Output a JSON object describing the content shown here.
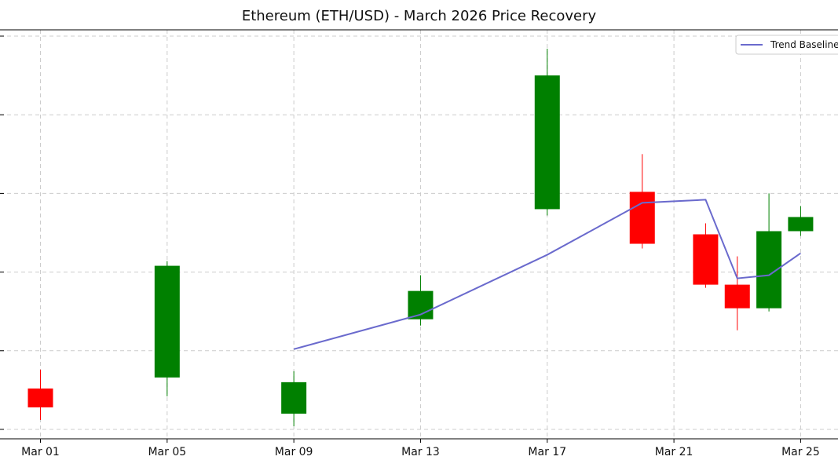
{
  "chart_data": {
    "type": "candlestick",
    "title": "Ethereum (ETH/USD) - March 2026 Price Recovery",
    "xlabel": "",
    "ylabel": "",
    "grid": true,
    "legend_position": "top-right",
    "x_ticks": [
      "Mar 01",
      "Mar 05",
      "Mar 09",
      "Mar 13",
      "Mar 17",
      "Mar 21",
      "Mar 25"
    ],
    "colors": {
      "up": "#008000",
      "down": "#ff0000",
      "trend": "#6a6acd",
      "grid": "#cccccc"
    },
    "candles": [
      {
        "date": "Mar 01",
        "open": 1.3,
        "high": 1.9,
        "low": 0.3,
        "close": 0.7
      },
      {
        "date": "Mar 05",
        "open": 1.65,
        "high": 5.35,
        "low": 1.05,
        "close": 5.2
      },
      {
        "date": "Mar 09",
        "open": 0.5,
        "high": 1.85,
        "low": 0.1,
        "close": 1.5
      },
      {
        "date": "Mar 13",
        "open": 3.5,
        "high": 4.9,
        "low": 3.3,
        "close": 4.4
      },
      {
        "date": "Mar 17",
        "open": 7.0,
        "high": 12.1,
        "low": 6.8,
        "close": 11.25
      },
      {
        "date": "Mar 20",
        "open": 7.55,
        "high": 8.75,
        "low": 5.75,
        "close": 5.9
      },
      {
        "date": "Mar 22",
        "open": 6.2,
        "high": 6.55,
        "low": 4.5,
        "close": 4.6
      },
      {
        "date": "Mar 23",
        "open": 4.6,
        "high": 5.5,
        "low": 3.15,
        "close": 3.85
      },
      {
        "date": "Mar 24",
        "open": 3.85,
        "high": 7.5,
        "low": 3.75,
        "close": 6.3
      },
      {
        "date": "Mar 25",
        "open": 6.3,
        "high": 7.1,
        "low": 6.15,
        "close": 6.75
      }
    ],
    "series": [
      {
        "name": "Trend Baseline",
        "x": [
          "Mar 09",
          "Mar 13",
          "Mar 17",
          "Mar 20",
          "Mar 22",
          "Mar 23",
          "Mar 24",
          "Mar 25"
        ],
        "values": [
          2.55,
          3.65,
          5.55,
          7.2,
          7.3,
          4.8,
          4.9,
          5.6
        ]
      }
    ],
    "ylim": [
      -0.3,
      12.7
    ]
  }
}
